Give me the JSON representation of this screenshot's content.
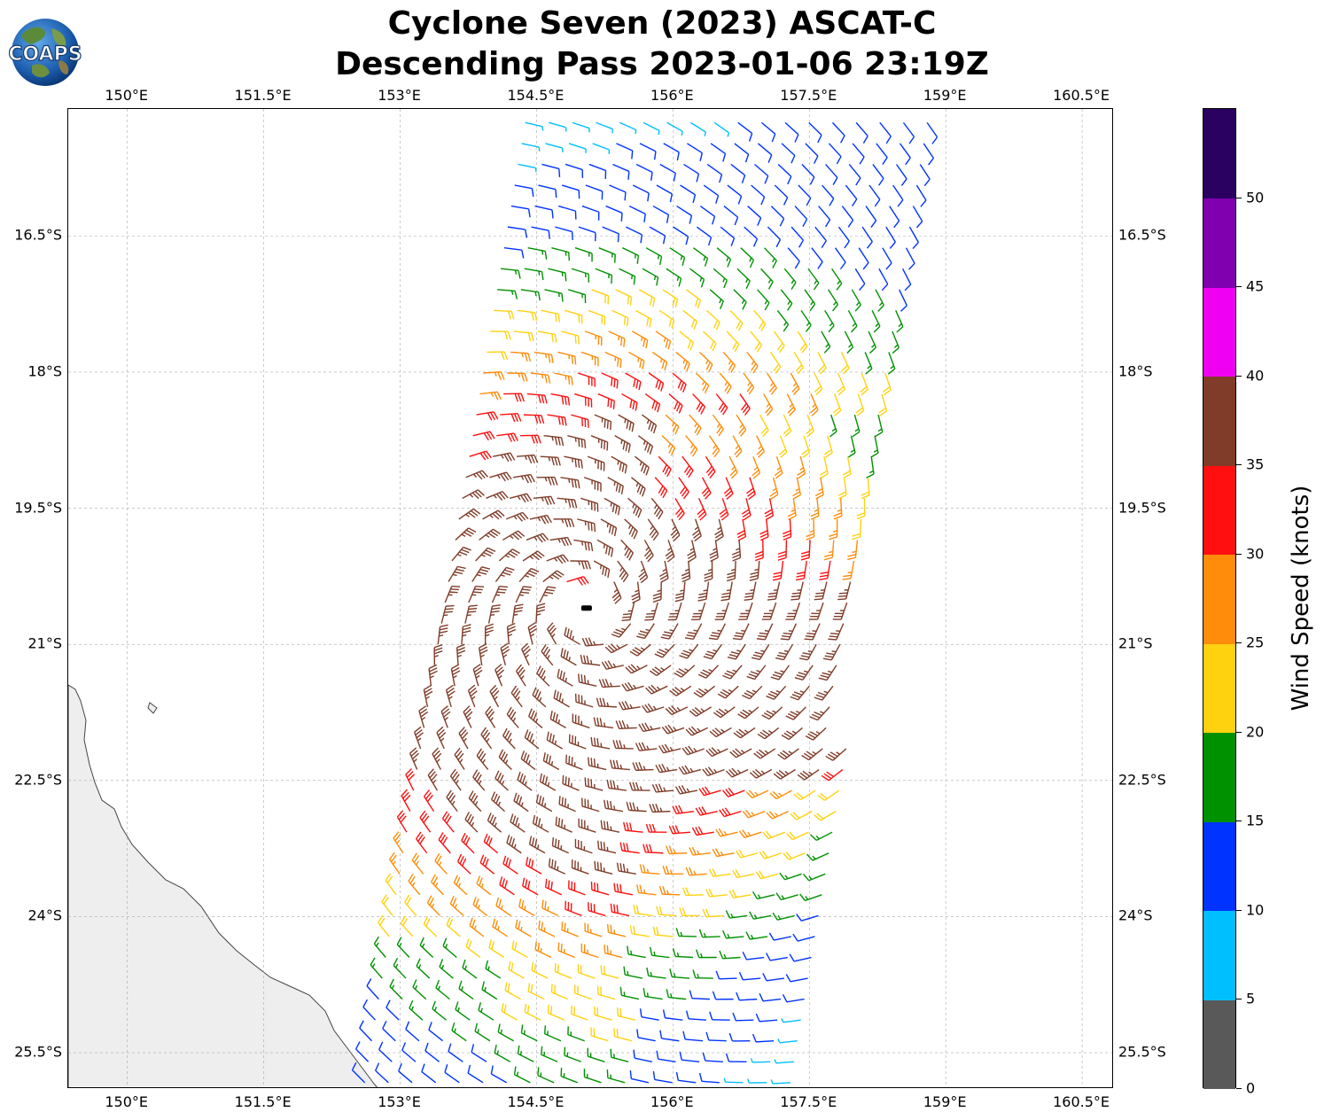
{
  "title": {
    "line1": "Cyclone Seven (2023) ASCAT-C",
    "line2": "Descending Pass 2023-01-06 23:19Z"
  },
  "logo": {
    "text": "COAPS",
    "icon": "globe-icon"
  },
  "map": {
    "lon_ticks": [
      "150°E",
      "151.5°E",
      "153°E",
      "154.5°E",
      "156°E",
      "157.5°E",
      "159°E",
      "160.5°E"
    ],
    "lat_ticks": [
      "16.5°S",
      "18°S",
      "19.5°S",
      "21°S",
      "22.5°S",
      "24°S",
      "25.5°S"
    ],
    "lon_range": [
      149.35,
      160.85
    ],
    "lat_range": [
      -15.1,
      -25.9
    ],
    "gridlines": true,
    "landmass": "Queensland coast (lower left)",
    "storm_center": {
      "lon": 155.05,
      "lat": -20.6
    }
  },
  "colorbar": {
    "label": "Wind Speed (knots)",
    "tick_labels": [
      "0",
      "5",
      "10",
      "15",
      "20",
      "25",
      "30",
      "35",
      "40",
      "45",
      "50"
    ],
    "bins": [
      {
        "min": 0,
        "max": 5,
        "color": "#595959"
      },
      {
        "min": 5,
        "max": 10,
        "color": "#00bfff"
      },
      {
        "min": 10,
        "max": 15,
        "color": "#0033ff"
      },
      {
        "min": 15,
        "max": 20,
        "color": "#009100"
      },
      {
        "min": 20,
        "max": 25,
        "color": "#ffd20f"
      },
      {
        "min": 25,
        "max": 30,
        "color": "#ff8c0a"
      },
      {
        "min": 30,
        "max": 35,
        "color": "#ff0f0f"
      },
      {
        "min": 35,
        "max": 40,
        "color": "#803c28"
      },
      {
        "min": 40,
        "max": 45,
        "color": "#f000f0"
      },
      {
        "min": 45,
        "max": 50,
        "color": "#8000b0"
      },
      {
        "min": 50,
        "max": 55,
        "color": "#2a0060"
      }
    ]
  }
}
